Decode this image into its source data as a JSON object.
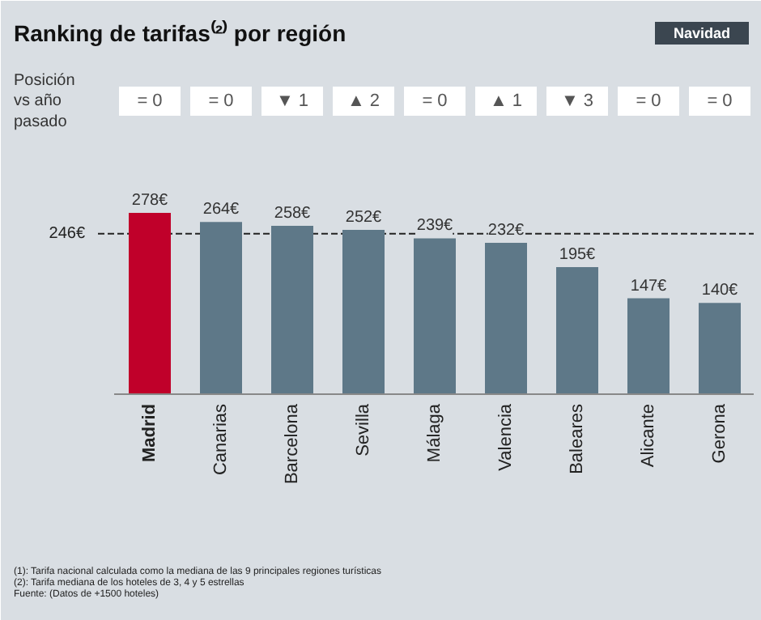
{
  "chart_data": {
    "type": "bar",
    "title": "Ranking de tarifas⁽²⁾ por región",
    "subtitle": "Navidad",
    "categories": [
      "Madrid",
      "Canarias",
      "Barcelona",
      "Sevilla",
      "Málaga",
      "Valencia",
      "Baleares",
      "Alicante",
      "Gerona"
    ],
    "values": [
      278,
      264,
      258,
      252,
      239,
      232,
      195,
      147,
      140
    ],
    "colors": [
      "#c0002a",
      "#5e7888",
      "#5e7888",
      "#5e7888",
      "#5e7888",
      "#5e7888",
      "#5e7888",
      "#5e7888",
      "#5e7888"
    ],
    "value_labels": [
      "278€",
      "264€",
      "258€",
      "252€",
      "239€",
      "232€",
      "195€",
      "147€",
      "140€"
    ],
    "ref_lines": [
      {
        "axis": "y",
        "value": 246,
        "label": "246€",
        "line_style": "dashed",
        "color": "#222222"
      }
    ],
    "annotations": [
      "Posición\nvs año\npasado",
      "= 0",
      "= 0",
      "▼ 1",
      "▲ 2",
      "= 0",
      "▲ 1",
      "▼ 3",
      "= 0",
      "= 0",
      "(1): Tarifa nacional calculada como la mediana de las 9 principales regiones turísticas",
      "(2): Tarifa mediana de los hoteles de 3, 4 y 5 estrellas",
      "Fuente: (Datos de +1500 hoteles)"
    ]
  }
}
